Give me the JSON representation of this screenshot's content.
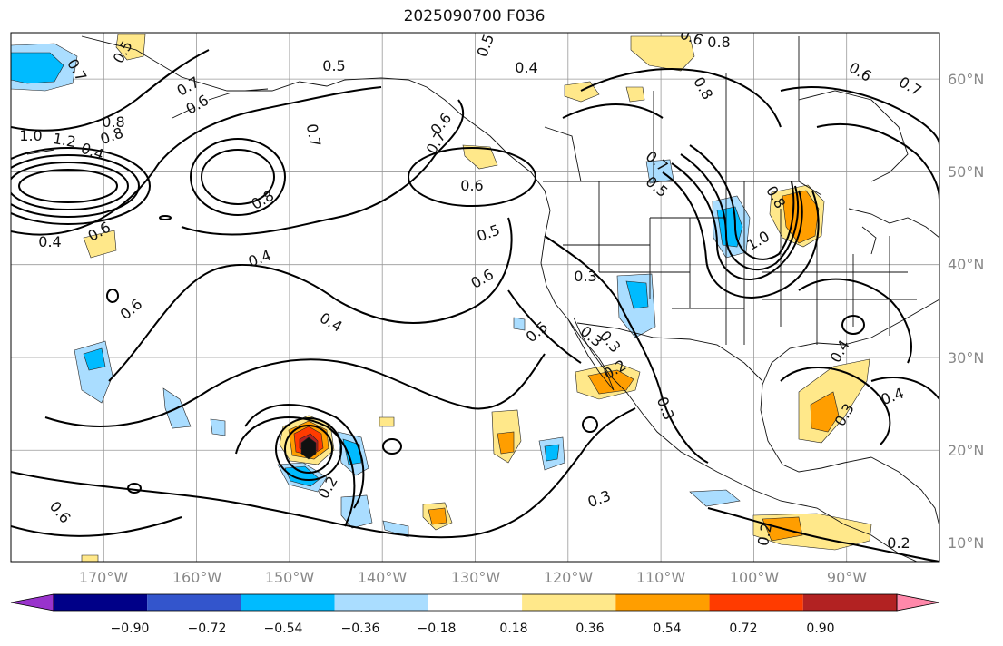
{
  "title": "2025090700 F036",
  "map": {
    "type": "contour-map",
    "projection": "cylindrical",
    "lon_range": [
      -180,
      -80
    ],
    "lat_range": [
      8,
      65
    ],
    "grid": true,
    "lon_labels": [
      "170°W",
      "160°W",
      "150°W",
      "140°W",
      "130°W",
      "120°W",
      "110°W",
      "100°W",
      "90°W"
    ],
    "lat_labels": [
      "60°N",
      "50°N",
      "40°N",
      "30°N",
      "20°N",
      "10°N"
    ],
    "contour_labels": [
      "0.5",
      "0.5",
      "0.7",
      "0.6",
      "0.8",
      "0.7",
      "0.6",
      "0.8",
      "0.7",
      "0.6",
      "1.0",
      "1.2",
      "0.4",
      "0.5",
      "0.8",
      "0.8",
      "0.7",
      "0.7",
      "0.6",
      "0.7",
      "0.4",
      "0.8",
      "0.5",
      "0.6",
      "0.3",
      "0.5",
      "0.8",
      "1.0",
      "0.6",
      "0.4",
      "0.6",
      "0.4",
      "0.5",
      "0.3",
      "0.6",
      "0.3",
      "0.4",
      "0.6",
      "0.2",
      "0.3",
      "0.3",
      "0.4",
      "0.3",
      "0.2",
      "0.2",
      "0.4",
      "0.2"
    ]
  },
  "colorbar": {
    "tick_labels": [
      "−0.90",
      "−0.72",
      "−0.54",
      "−0.36",
      "−0.18",
      "0.18",
      "0.36",
      "0.54",
      "0.72",
      "0.90"
    ],
    "colors": [
      "#9933cc",
      "#000088",
      "#3355cc",
      "#00bbff",
      "#aaddff",
      "#ffffff",
      "#ffe88a",
      "#ff9e00",
      "#ff3b00",
      "#b22222",
      "#ff88aa"
    ]
  }
}
